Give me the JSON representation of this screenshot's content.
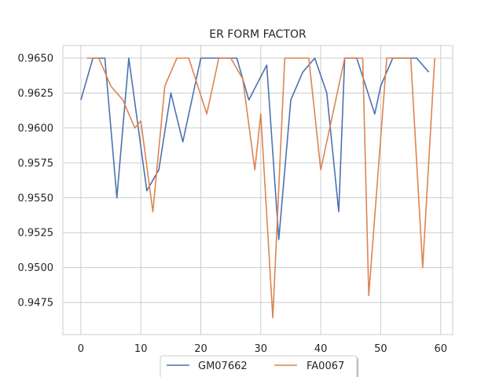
{
  "chart_data": {
    "type": "line",
    "title": "ER FORM FACTOR",
    "xlabel": "",
    "ylabel": "",
    "xlim": [
      -3,
      62
    ],
    "ylim": [
      0.9452,
      0.9659
    ],
    "xticks": [
      0,
      10,
      20,
      30,
      40,
      50,
      60
    ],
    "yticks": [
      0.9475,
      0.95,
      0.9525,
      0.955,
      0.9575,
      0.96,
      0.9625,
      0.965
    ],
    "ytick_labels": [
      "0.9475",
      "0.9500",
      "0.9525",
      "0.9550",
      "0.9575",
      "0.9600",
      "0.9625",
      "0.9650"
    ],
    "grid": true,
    "legend_position": "bottom-center",
    "series": [
      {
        "name": "GM07662",
        "color": "#4c72b0",
        "points": [
          [
            0,
            0.962
          ],
          [
            2,
            0.965
          ],
          [
            4,
            0.965
          ],
          [
            6,
            0.955
          ],
          [
            8,
            0.965
          ],
          [
            11,
            0.9555
          ],
          [
            13,
            0.957
          ],
          [
            15,
            0.9625
          ],
          [
            17,
            0.959
          ],
          [
            20,
            0.965
          ],
          [
            22,
            0.965
          ],
          [
            24,
            0.965
          ],
          [
            26,
            0.965
          ],
          [
            28,
            0.962
          ],
          [
            31,
            0.9645
          ],
          [
            33,
            0.952
          ],
          [
            35,
            0.962
          ],
          [
            37,
            0.964
          ],
          [
            39,
            0.965
          ],
          [
            41,
            0.9625
          ],
          [
            43,
            0.954
          ],
          [
            44,
            0.965
          ],
          [
            46,
            0.965
          ],
          [
            49,
            0.961
          ],
          [
            50,
            0.963
          ],
          [
            52,
            0.965
          ],
          [
            54,
            0.965
          ],
          [
            56,
            0.965
          ],
          [
            58,
            0.964
          ]
        ]
      },
      {
        "name": "FA0067",
        "color": "#dd8452",
        "points": [
          [
            1,
            0.965
          ],
          [
            3,
            0.965
          ],
          [
            5,
            0.963
          ],
          [
            7,
            0.962
          ],
          [
            9,
            0.96
          ],
          [
            10,
            0.9605
          ],
          [
            12,
            0.954
          ],
          [
            14,
            0.963
          ],
          [
            16,
            0.965
          ],
          [
            18,
            0.965
          ],
          [
            21,
            0.961
          ],
          [
            23,
            0.965
          ],
          [
            25,
            0.965
          ],
          [
            27,
            0.9635
          ],
          [
            29,
            0.957
          ],
          [
            30,
            0.961
          ],
          [
            32,
            0.9464
          ],
          [
            34,
            0.965
          ],
          [
            36,
            0.965
          ],
          [
            38,
            0.965
          ],
          [
            40,
            0.957
          ],
          [
            42,
            0.961
          ],
          [
            44,
            0.965
          ],
          [
            47,
            0.965
          ],
          [
            48,
            0.948
          ],
          [
            51,
            0.965
          ],
          [
            53,
            0.965
          ],
          [
            55,
            0.965
          ],
          [
            57,
            0.95
          ],
          [
            59,
            0.965
          ]
        ]
      }
    ]
  }
}
